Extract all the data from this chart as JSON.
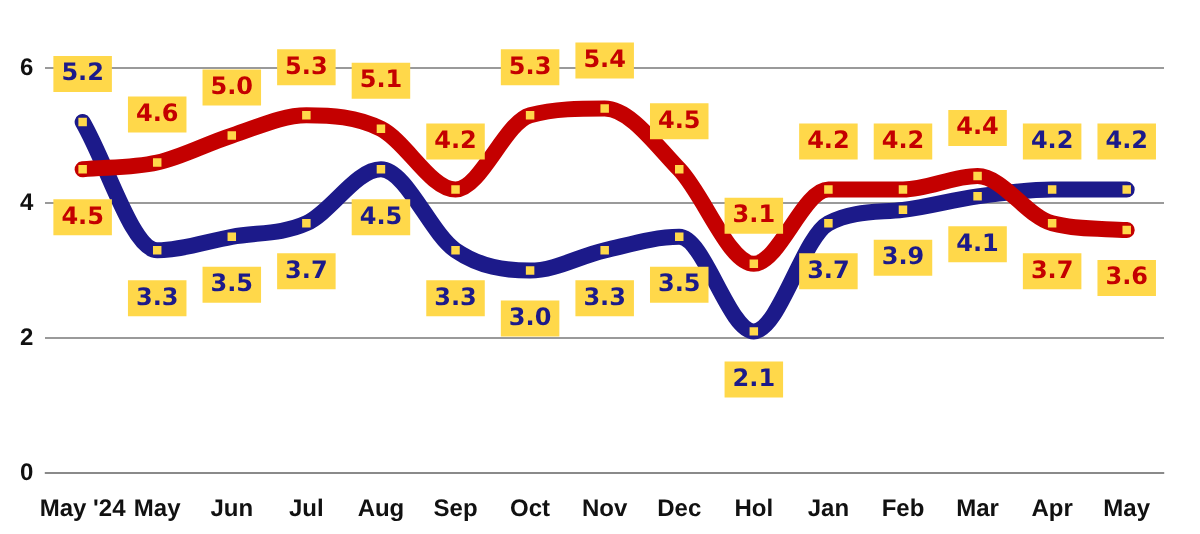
{
  "chart_data": {
    "type": "line",
    "categories": [
      "May '24",
      "May",
      "Jun",
      "Jul",
      "Aug",
      "Sep",
      "Oct",
      "Nov",
      "Dec",
      "Hol",
      "Jan",
      "Feb",
      "Mar",
      "Apr",
      "May"
    ],
    "series": [
      {
        "color": "#c40000",
        "values": [
          4.5,
          4.6,
          5.0,
          5.3,
          5.1,
          4.2,
          5.3,
          5.4,
          4.5,
          3.1,
          4.2,
          4.2,
          4.4,
          3.7,
          3.6
        ],
        "value_labels": [
          "4.5",
          "4.6",
          "5.0",
          "5.3",
          "5.1",
          "4.2",
          "5.3",
          "5.4",
          "4.5",
          "3.1",
          "4.2",
          "4.2",
          "4.4",
          "3.7",
          "3.6"
        ]
      },
      {
        "color": "#1c1a8a",
        "values": [
          5.2,
          3.3,
          3.5,
          3.7,
          4.5,
          3.3,
          3.0,
          3.3,
          3.5,
          2.1,
          3.7,
          3.9,
          4.1,
          4.2,
          4.2
        ],
        "value_labels": [
          "5.2",
          "3.3",
          "3.5",
          "3.7",
          "4.5",
          "3.3",
          "3.0",
          "3.3",
          "3.5",
          "2.1",
          "3.7",
          "3.9",
          "4.1",
          "4.2",
          "4.2"
        ]
      }
    ],
    "ylim": [
      0,
      6
    ],
    "yticks": [
      0,
      2,
      4,
      6
    ],
    "grid": "y",
    "legend": false,
    "marker": "square",
    "line_style": "solid"
  }
}
